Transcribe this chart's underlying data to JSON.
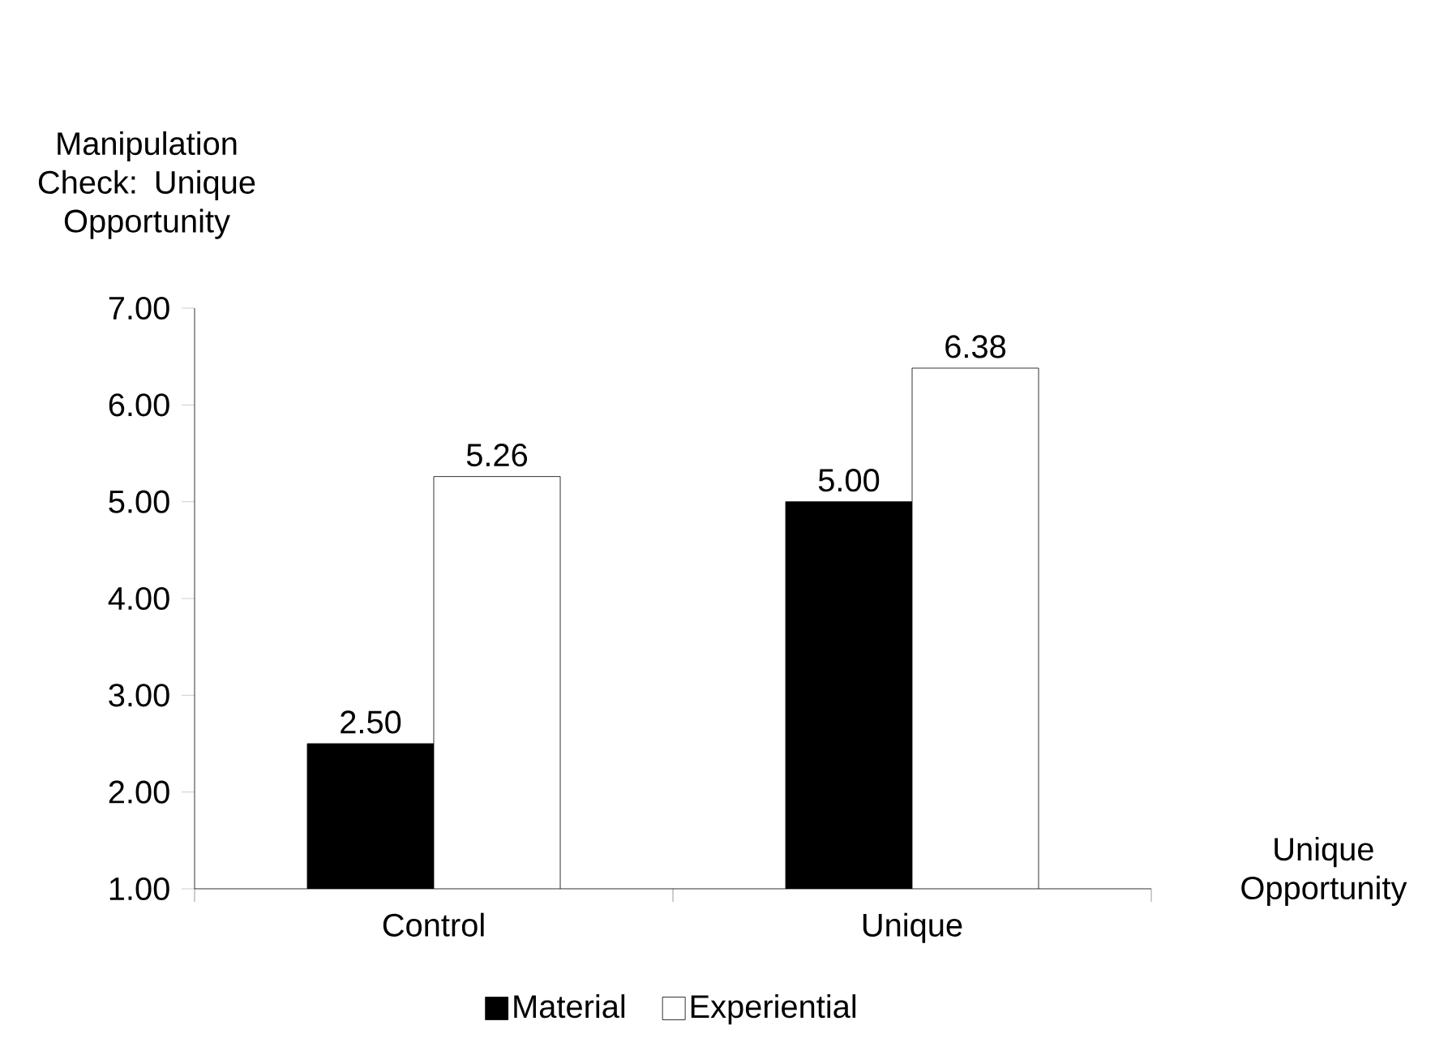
{
  "chart_data": {
    "type": "bar",
    "ylabel": "Manipulation Check: Unique Opportunity",
    "xlabel": "Unique Opportunity",
    "categories": [
      "Control",
      "Unique"
    ],
    "series": [
      {
        "name": "Material",
        "color": "#000000",
        "values": [
          2.5,
          5.0
        ],
        "value_labels": [
          "2.50",
          "5.00"
        ]
      },
      {
        "name": "Experiential",
        "color": "#ffffff",
        "values": [
          5.26,
          6.38
        ],
        "value_labels": [
          "5.26",
          "6.38"
        ]
      }
    ],
    "ylim": [
      1,
      7
    ],
    "yticks": [
      {
        "value": 1,
        "label": "1.00"
      },
      {
        "value": 2,
        "label": "2.00"
      },
      {
        "value": 3,
        "label": "3.00"
      },
      {
        "value": 4,
        "label": "4.00"
      },
      {
        "value": 5,
        "label": "5.00"
      },
      {
        "value": 6,
        "label": "6.00"
      },
      {
        "value": 7,
        "label": "7.00"
      }
    ],
    "grid": false,
    "legend": "bottom"
  }
}
